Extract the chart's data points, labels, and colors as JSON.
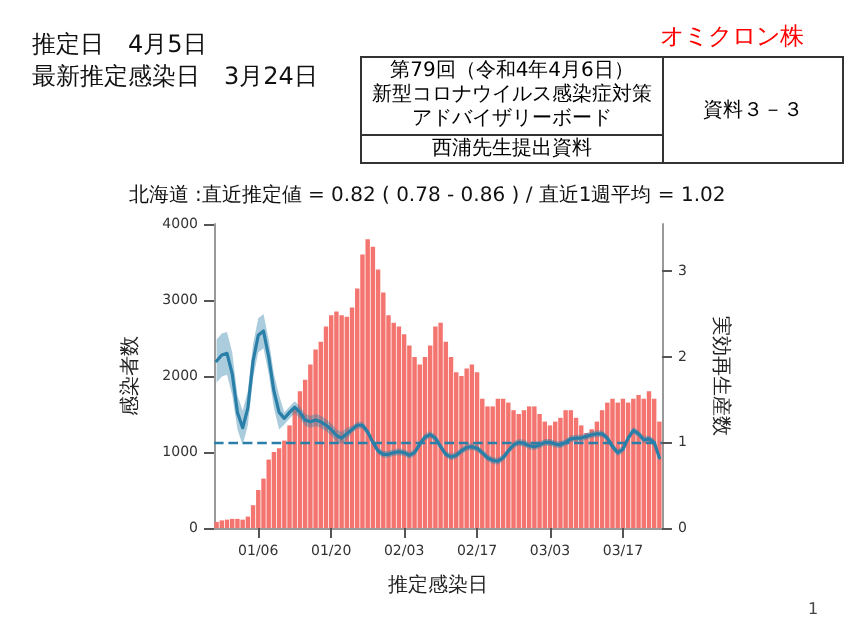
{
  "chart_data": {
    "type": "bar",
    "title": "北海道 :直近推定値 = 0.82 ( 0.78 - 0.86 ) / 直近1週平均 = 1.02",
    "xlabel": "推定感染日",
    "ylabel": "感染者数",
    "y2label": "実効再生産数",
    "annotations": [
      "推定日　4月5日",
      "最新推定感染日　3月24日",
      "オミクロン株",
      "第79回（令和4年4月6日）",
      "新型コロナウイルス感染症対策",
      "アドバイザリーボード",
      "西浦先生提出資料",
      "資料３－３",
      "1"
    ],
    "categories": [
      null,
      null,
      null,
      null,
      null,
      null,
      null,
      null,
      "01/06",
      null,
      null,
      null,
      null,
      null,
      null,
      null,
      null,
      null,
      null,
      null,
      null,
      null,
      "01/20",
      null,
      null,
      null,
      null,
      null,
      null,
      null,
      null,
      null,
      null,
      null,
      null,
      null,
      "02/03",
      null,
      null,
      null,
      null,
      null,
      null,
      null,
      null,
      null,
      null,
      null,
      null,
      null,
      "02/17",
      null,
      null,
      null,
      null,
      null,
      null,
      null,
      null,
      null,
      null,
      null,
      null,
      null,
      "03/03",
      null,
      null,
      null,
      null,
      null,
      null,
      null,
      null,
      null,
      null,
      null,
      null,
      null,
      "03/17",
      null,
      null,
      null,
      null,
      null,
      null,
      null
    ],
    "series": [
      {
        "color": "#f4756f",
        "values": [
          80,
          100,
          110,
          120,
          120,
          110,
          150,
          300,
          500,
          650,
          900,
          1000,
          1050,
          1150,
          1350,
          1550,
          1800,
          1950,
          2150,
          2350,
          2450,
          2650,
          2800,
          2850,
          2800,
          2780,
          2900,
          3150,
          3600,
          3800,
          3700,
          3400,
          3100,
          2800,
          2700,
          2650,
          2550,
          2400,
          2250,
          2150,
          2250,
          2400,
          2650,
          2700,
          2450,
          2250,
          2050,
          2000,
          2100,
          2150,
          2050,
          1700,
          1600,
          1600,
          1700,
          1700,
          1650,
          1550,
          1500,
          1550,
          1600,
          1600,
          1500,
          1400,
          1350,
          1400,
          1450,
          1550,
          1550,
          1450,
          1350,
          1250,
          1300,
          1400,
          1550,
          1650,
          1700,
          1650,
          1700,
          1650,
          1700,
          1750,
          1700,
          1800,
          1700,
          1400
        ]
      },
      {
        "type": "line",
        "axis": "y2",
        "color": "#2a7fa8",
        "values": [
          1.95,
          2.02,
          2.04,
          1.8,
          1.35,
          1.17,
          1.4,
          1.95,
          2.25,
          2.3,
          2.0,
          1.6,
          1.35,
          1.28,
          1.35,
          1.41,
          1.35,
          1.26,
          1.24,
          1.26,
          1.24,
          1.2,
          1.15,
          1.08,
          1.05,
          1.1,
          1.15,
          1.2,
          1.2,
          1.12,
          1.0,
          0.9,
          0.86,
          0.86,
          0.88,
          0.89,
          0.88,
          0.85,
          0.88,
          0.98,
          1.06,
          1.09,
          1.05,
          0.95,
          0.86,
          0.83,
          0.85,
          0.9,
          0.94,
          0.95,
          0.93,
          0.88,
          0.82,
          0.79,
          0.78,
          0.82,
          0.9,
          0.97,
          1.0,
          0.99,
          0.96,
          0.95,
          0.97,
          1.0,
          1.0,
          0.98,
          0.97,
          1.0,
          1.04,
          1.05,
          1.05,
          1.07,
          1.09,
          1.1,
          1.1,
          1.05,
          0.95,
          0.88,
          0.92,
          1.05,
          1.14,
          1.1,
          1.03,
          1.04,
          1.0,
          0.82
        ],
        "lower": [
          1.7,
          1.77,
          1.79,
          1.55,
          1.15,
          0.97,
          1.2,
          1.75,
          2.05,
          2.1,
          1.8,
          1.4,
          1.15,
          1.21,
          1.28,
          1.34,
          1.28,
          1.19,
          1.17,
          1.19,
          1.17,
          1.13,
          1.08,
          1.01,
          0.98,
          1.03,
          1.11,
          1.16,
          1.16,
          1.08,
          0.96,
          0.86,
          0.82,
          0.82,
          0.84,
          0.85,
          0.84,
          0.81,
          0.84,
          0.94,
          1.02,
          1.05,
          1.01,
          0.91,
          0.82,
          0.79,
          0.81,
          0.86,
          0.9,
          0.91,
          0.89,
          0.84,
          0.78,
          0.75,
          0.74,
          0.78,
          0.86,
          0.93,
          0.96,
          0.95,
          0.92,
          0.91,
          0.93,
          0.96,
          0.96,
          0.94,
          0.93,
          0.96,
          1.0,
          1.01,
          1.01,
          1.03,
          1.05,
          1.06,
          1.06,
          1.01,
          0.91,
          0.84,
          0.88,
          1.01,
          1.1,
          1.06,
          0.99,
          1.0,
          0.96,
          0.78
        ],
        "upper": [
          2.2,
          2.27,
          2.29,
          2.05,
          1.55,
          1.37,
          1.6,
          2.15,
          2.45,
          2.5,
          2.2,
          1.8,
          1.55,
          1.35,
          1.42,
          1.48,
          1.42,
          1.33,
          1.31,
          1.33,
          1.31,
          1.27,
          1.22,
          1.15,
          1.12,
          1.17,
          1.19,
          1.24,
          1.24,
          1.16,
          1.04,
          0.94,
          0.9,
          0.9,
          0.92,
          0.93,
          0.92,
          0.89,
          0.92,
          1.02,
          1.1,
          1.13,
          1.09,
          0.99,
          0.9,
          0.87,
          0.89,
          0.94,
          0.98,
          0.99,
          0.97,
          0.92,
          0.86,
          0.83,
          0.82,
          0.86,
          0.94,
          1.01,
          1.04,
          1.03,
          1.0,
          0.99,
          1.01,
          1.04,
          1.04,
          1.02,
          1.01,
          1.04,
          1.08,
          1.09,
          1.09,
          1.11,
          1.13,
          1.14,
          1.14,
          1.09,
          0.99,
          0.92,
          0.96,
          1.09,
          1.18,
          1.14,
          1.07,
          1.08,
          1.04,
          0.86
        ]
      }
    ],
    "ylim": [
      0,
      4000
    ],
    "yticks": [
      0,
      1000,
      2000,
      3000,
      4000
    ],
    "y2lim": [
      0,
      3.55
    ],
    "y2ticks": [
      0,
      1,
      2,
      3
    ],
    "ref_lines": [
      {
        "axis": "y2",
        "value": 1,
        "color": "#2a7fa8",
        "line_style": "dashed"
      }
    ],
    "marker": "none",
    "grid": false
  }
}
